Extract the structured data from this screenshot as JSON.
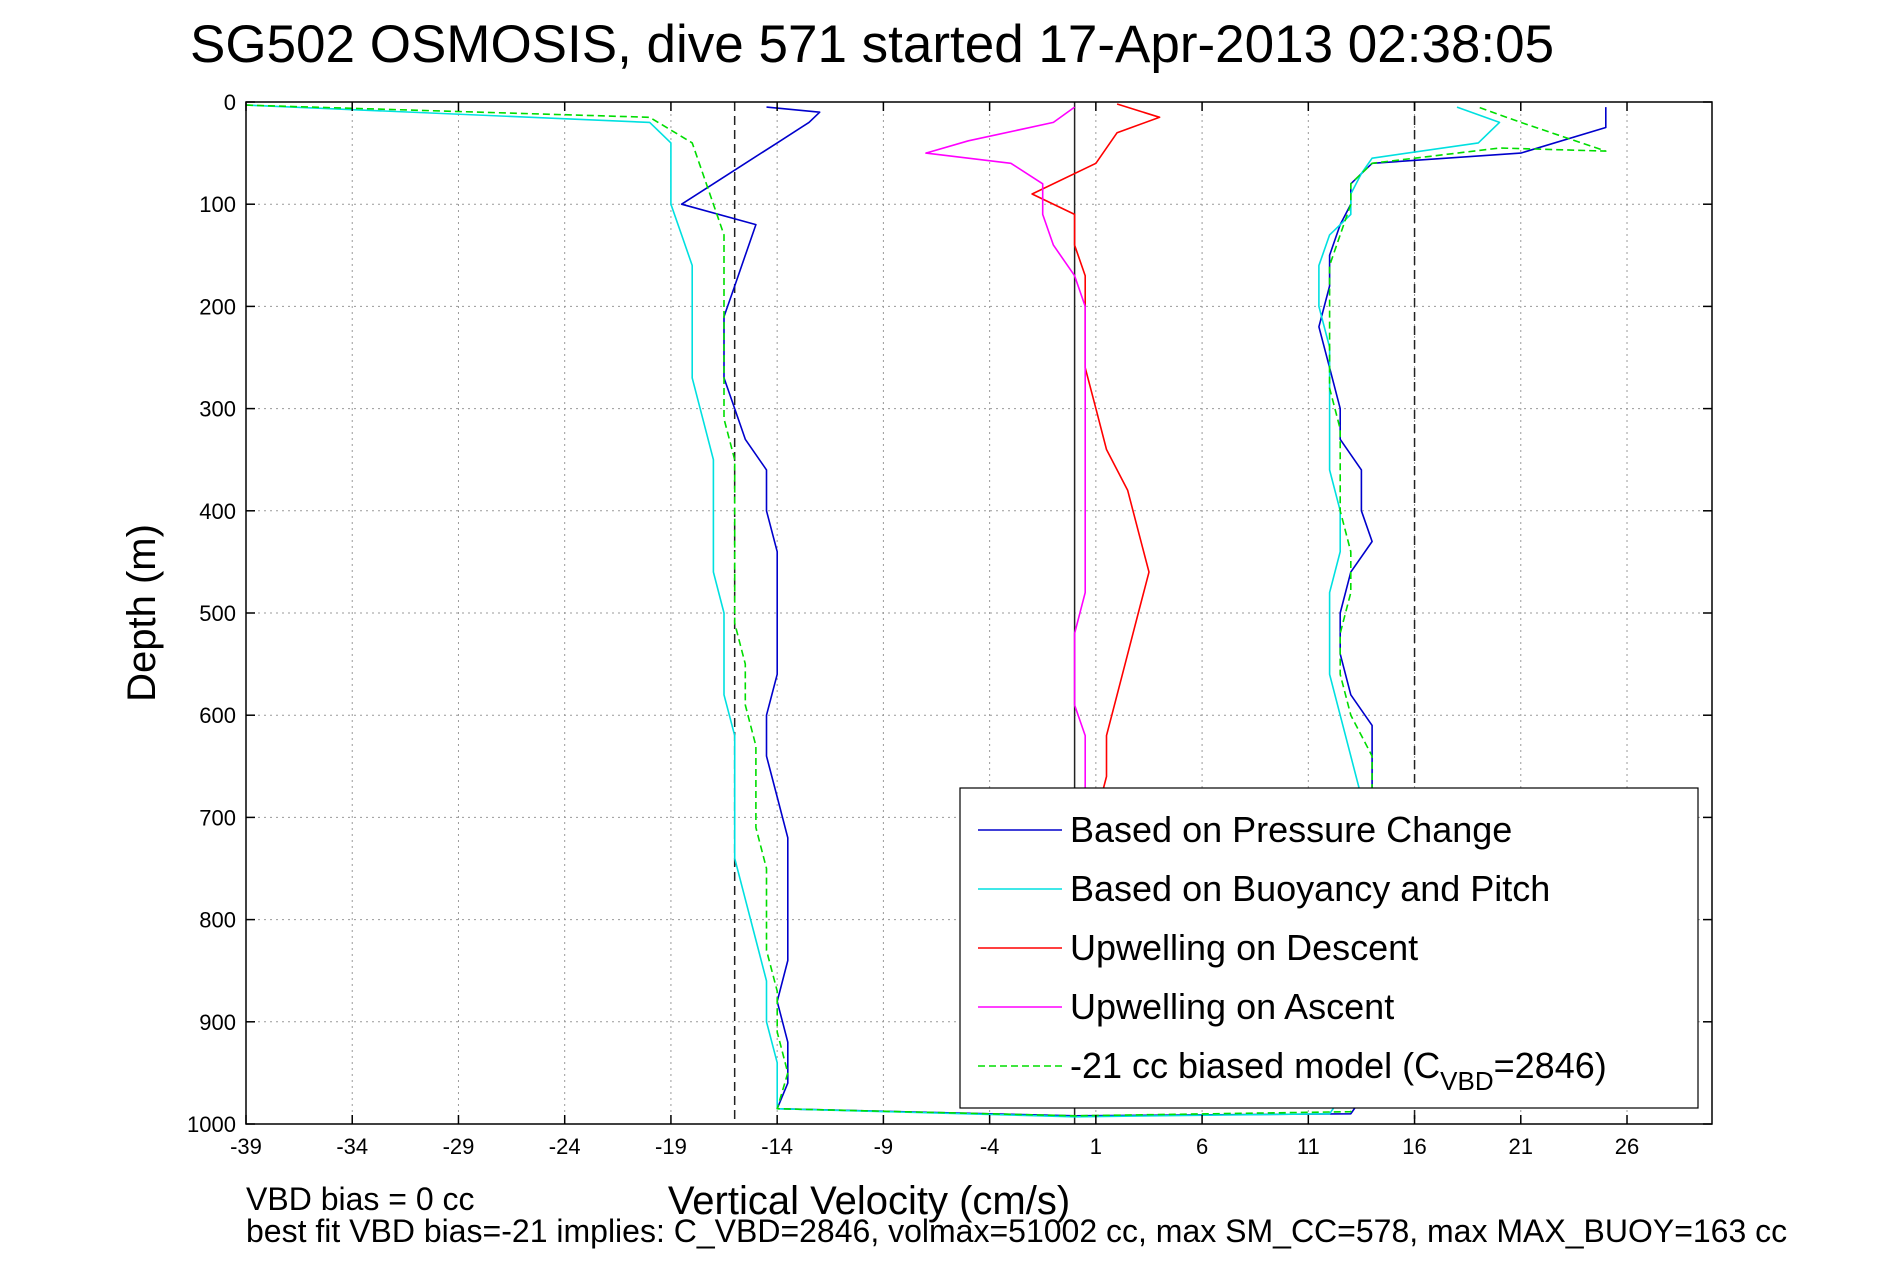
{
  "title": "SG502 OSMOSIS, dive 571 started 17-Apr-2013 02:38:05",
  "footer": {
    "line1": "VBD bias = 0 cc",
    "line2": "best fit VBD bias=-21 implies: C_VBD=2846, volmax=51002 cc, max SM_CC=578, max MAX_BUOY=163 cc"
  },
  "chart_data": {
    "type": "line",
    "title": "SG502 OSMOSIS, dive 571 started 17-Apr-2013 02:38:05",
    "xlabel": "Vertical Velocity (cm/s)",
    "ylabel": "Depth (m)",
    "xlim": [
      -39,
      30
    ],
    "ylim": [
      0,
      1000
    ],
    "y_reversed": true,
    "grid": true,
    "legend_position": "bottom-right",
    "xticks": [
      -39,
      -34,
      -29,
      -24,
      -19,
      -14,
      -9,
      -4,
      1,
      6,
      11,
      16,
      21,
      26
    ],
    "yticks": [
      0,
      100,
      200,
      300,
      400,
      500,
      600,
      700,
      800,
      900,
      1000
    ],
    "reference_lines": [
      {
        "x": -16,
        "style": "dashed"
      },
      {
        "x": 0,
        "style": "solid"
      },
      {
        "x": 16,
        "style": "dashed"
      }
    ],
    "series": [
      {
        "name": "Based on Pressure Change",
        "color": "#0000cc",
        "points": [
          [
            -14.5,
            5
          ],
          [
            -12,
            10
          ],
          [
            -12.5,
            20
          ],
          [
            -14,
            40
          ],
          [
            -15.5,
            60
          ],
          [
            -17,
            80
          ],
          [
            -18.5,
            100
          ],
          [
            -15,
            120
          ],
          [
            -15.5,
            150
          ],
          [
            -16,
            180
          ],
          [
            -16.5,
            210
          ],
          [
            -16.5,
            240
          ],
          [
            -16.5,
            270
          ],
          [
            -16,
            300
          ],
          [
            -15.5,
            330
          ],
          [
            -14.5,
            360
          ],
          [
            -14.5,
            400
          ],
          [
            -14,
            440
          ],
          [
            -14,
            480
          ],
          [
            -14,
            520
          ],
          [
            -14,
            560
          ],
          [
            -14.5,
            600
          ],
          [
            -14.5,
            640
          ],
          [
            -14,
            680
          ],
          [
            -13.5,
            720
          ],
          [
            -13.5,
            760
          ],
          [
            -13.5,
            800
          ],
          [
            -13.5,
            840
          ],
          [
            -14,
            880
          ],
          [
            -13.5,
            920
          ],
          [
            -13.5,
            960
          ],
          [
            -14,
            985
          ],
          [
            0,
            992
          ],
          [
            13,
            990
          ],
          [
            14,
            960
          ],
          [
            14,
            920
          ],
          [
            14,
            880
          ],
          [
            14,
            840
          ],
          [
            14,
            800
          ],
          [
            14,
            760
          ],
          [
            14,
            720
          ],
          [
            14,
            680
          ],
          [
            14,
            640
          ],
          [
            14,
            610
          ],
          [
            13,
            580
          ],
          [
            12.5,
            540
          ],
          [
            12.5,
            500
          ],
          [
            13,
            460
          ],
          [
            14,
            430
          ],
          [
            13.5,
            400
          ],
          [
            13.5,
            360
          ],
          [
            12.5,
            330
          ],
          [
            12.5,
            300
          ],
          [
            12,
            260
          ],
          [
            11.5,
            220
          ],
          [
            12,
            180
          ],
          [
            12,
            150
          ],
          [
            12.5,
            120
          ],
          [
            13,
            100
          ],
          [
            13,
            80
          ],
          [
            14,
            60
          ],
          [
            21,
            50
          ],
          [
            25,
            25
          ],
          [
            25,
            5
          ]
        ]
      },
      {
        "name": "Based on Buoyancy and Pitch",
        "color": "#00e0e0",
        "points": [
          [
            -39,
            3
          ],
          [
            -20,
            20
          ],
          [
            -19,
            40
          ],
          [
            -19,
            70
          ],
          [
            -19,
            100
          ],
          [
            -18.5,
            130
          ],
          [
            -18,
            160
          ],
          [
            -18,
            200
          ],
          [
            -18,
            240
          ],
          [
            -18,
            270
          ],
          [
            -17.5,
            310
          ],
          [
            -17,
            350
          ],
          [
            -17,
            390
          ],
          [
            -17,
            420
          ],
          [
            -17,
            460
          ],
          [
            -16.5,
            500
          ],
          [
            -16.5,
            540
          ],
          [
            -16.5,
            580
          ],
          [
            -16,
            620
          ],
          [
            -16,
            660
          ],
          [
            -16,
            700
          ],
          [
            -16,
            740
          ],
          [
            -15.5,
            780
          ],
          [
            -15,
            820
          ],
          [
            -14.5,
            860
          ],
          [
            -14.5,
            900
          ],
          [
            -14,
            940
          ],
          [
            -14,
            985
          ],
          [
            0,
            993
          ],
          [
            12,
            990
          ],
          [
            13,
            960
          ],
          [
            13.5,
            920
          ],
          [
            13.5,
            880
          ],
          [
            13.5,
            840
          ],
          [
            13.5,
            800
          ],
          [
            13.5,
            760
          ],
          [
            13.5,
            720
          ],
          [
            13.5,
            680
          ],
          [
            13,
            640
          ],
          [
            12.5,
            600
          ],
          [
            12,
            560
          ],
          [
            12,
            520
          ],
          [
            12,
            480
          ],
          [
            12.5,
            440
          ],
          [
            12.5,
            400
          ],
          [
            12,
            360
          ],
          [
            12,
            320
          ],
          [
            12,
            280
          ],
          [
            12,
            240
          ],
          [
            11.5,
            200
          ],
          [
            11.5,
            160
          ],
          [
            12,
            130
          ],
          [
            13,
            110
          ],
          [
            13,
            90
          ],
          [
            13.5,
            70
          ],
          [
            14,
            55
          ],
          [
            19,
            40
          ],
          [
            20,
            20
          ],
          [
            18,
            5
          ]
        ]
      },
      {
        "name": "Upwelling on Descent",
        "color": "#ff0000",
        "points": [
          [
            2,
            2
          ],
          [
            4,
            15
          ],
          [
            2,
            30
          ],
          [
            1,
            60
          ],
          [
            -2,
            90
          ],
          [
            0,
            110
          ],
          [
            0,
            140
          ],
          [
            0.5,
            170
          ],
          [
            0.5,
            200
          ],
          [
            0.5,
            230
          ],
          [
            0.5,
            260
          ],
          [
            1,
            300
          ],
          [
            1.5,
            340
          ],
          [
            2.5,
            380
          ],
          [
            3,
            420
          ],
          [
            3.5,
            460
          ],
          [
            3,
            500
          ],
          [
            2.5,
            540
          ],
          [
            2,
            580
          ],
          [
            1.5,
            620
          ],
          [
            1.5,
            660
          ],
          [
            1,
            700
          ]
        ]
      },
      {
        "name": "Upwelling on Ascent",
        "color": "#ff00ff",
        "points": [
          [
            0.5,
            700
          ],
          [
            0.5,
            660
          ],
          [
            0.5,
            620
          ],
          [
            0,
            590
          ],
          [
            0,
            560
          ],
          [
            0,
            520
          ],
          [
            0.5,
            480
          ],
          [
            0.5,
            440
          ],
          [
            0.5,
            400
          ],
          [
            0.5,
            360
          ],
          [
            0.5,
            320
          ],
          [
            0.5,
            280
          ],
          [
            0.5,
            240
          ],
          [
            0.5,
            200
          ],
          [
            0,
            170
          ],
          [
            -1,
            140
          ],
          [
            -1.5,
            110
          ],
          [
            -1.5,
            80
          ],
          [
            -3,
            60
          ],
          [
            -7,
            50
          ],
          [
            -5,
            38
          ],
          [
            -1,
            20
          ],
          [
            0,
            5
          ]
        ]
      },
      {
        "name": "-21 cc biased model (C_VBD=2846)",
        "legend_label_parts": {
          "prefix": "-21 cc biased model (C",
          "subscript": "VBD",
          "suffix": "=2846)"
        },
        "color": "#00dd00",
        "dashed": true,
        "points": [
          [
            -39,
            3
          ],
          [
            -20,
            15
          ],
          [
            -18,
            40
          ],
          [
            -17.5,
            70
          ],
          [
            -17,
            100
          ],
          [
            -16.5,
            130
          ],
          [
            -16.5,
            160
          ],
          [
            -16.5,
            200
          ],
          [
            -16.5,
            240
          ],
          [
            -16.5,
            270
          ],
          [
            -16.5,
            310
          ],
          [
            -16,
            350
          ],
          [
            -16,
            390
          ],
          [
            -16,
            430
          ],
          [
            -16,
            470
          ],
          [
            -16,
            510
          ],
          [
            -15.5,
            550
          ],
          [
            -15.5,
            590
          ],
          [
            -15,
            630
          ],
          [
            -15,
            670
          ],
          [
            -15,
            710
          ],
          [
            -14.5,
            750
          ],
          [
            -14.5,
            790
          ],
          [
            -14.5,
            830
          ],
          [
            -14,
            870
          ],
          [
            -14,
            910
          ],
          [
            -13.5,
            950
          ],
          [
            -14,
            985
          ],
          [
            0,
            992
          ],
          [
            13,
            988
          ],
          [
            13.5,
            960
          ],
          [
            13.5,
            920
          ],
          [
            13.5,
            880
          ],
          [
            13.5,
            840
          ],
          [
            13.5,
            800
          ],
          [
            13.5,
            760
          ],
          [
            13.5,
            720
          ],
          [
            14,
            680
          ],
          [
            14,
            640
          ],
          [
            13,
            600
          ],
          [
            12.5,
            560
          ],
          [
            12.5,
            520
          ],
          [
            13,
            480
          ],
          [
            13,
            440
          ],
          [
            12.5,
            400
          ],
          [
            12.5,
            360
          ],
          [
            12.5,
            320
          ],
          [
            12,
            280
          ],
          [
            12,
            240
          ],
          [
            12,
            200
          ],
          [
            12,
            160
          ],
          [
            12.5,
            130
          ],
          [
            13,
            100
          ],
          [
            13,
            80
          ],
          [
            14,
            60
          ],
          [
            20,
            45
          ],
          [
            25,
            48
          ],
          [
            21,
            20
          ],
          [
            19,
            5
          ]
        ]
      }
    ]
  }
}
